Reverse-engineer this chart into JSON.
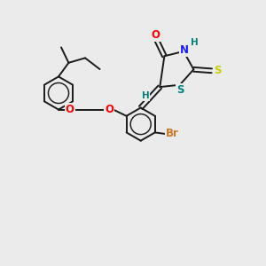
{
  "background_color": "#ebebeb",
  "bond_color": "#1a1a1a",
  "bond_width": 1.4,
  "atom_colors": {
    "O": "#ff0000",
    "N": "#1a1aff",
    "S_thioxo": "#cccc00",
    "S_ring": "#008080",
    "Br": "#cc7722",
    "H": "#008080",
    "C": "#1a1a1a"
  },
  "font_size": 8.5,
  "fig_width": 3.0,
  "fig_height": 3.0,
  "dpi": 100
}
